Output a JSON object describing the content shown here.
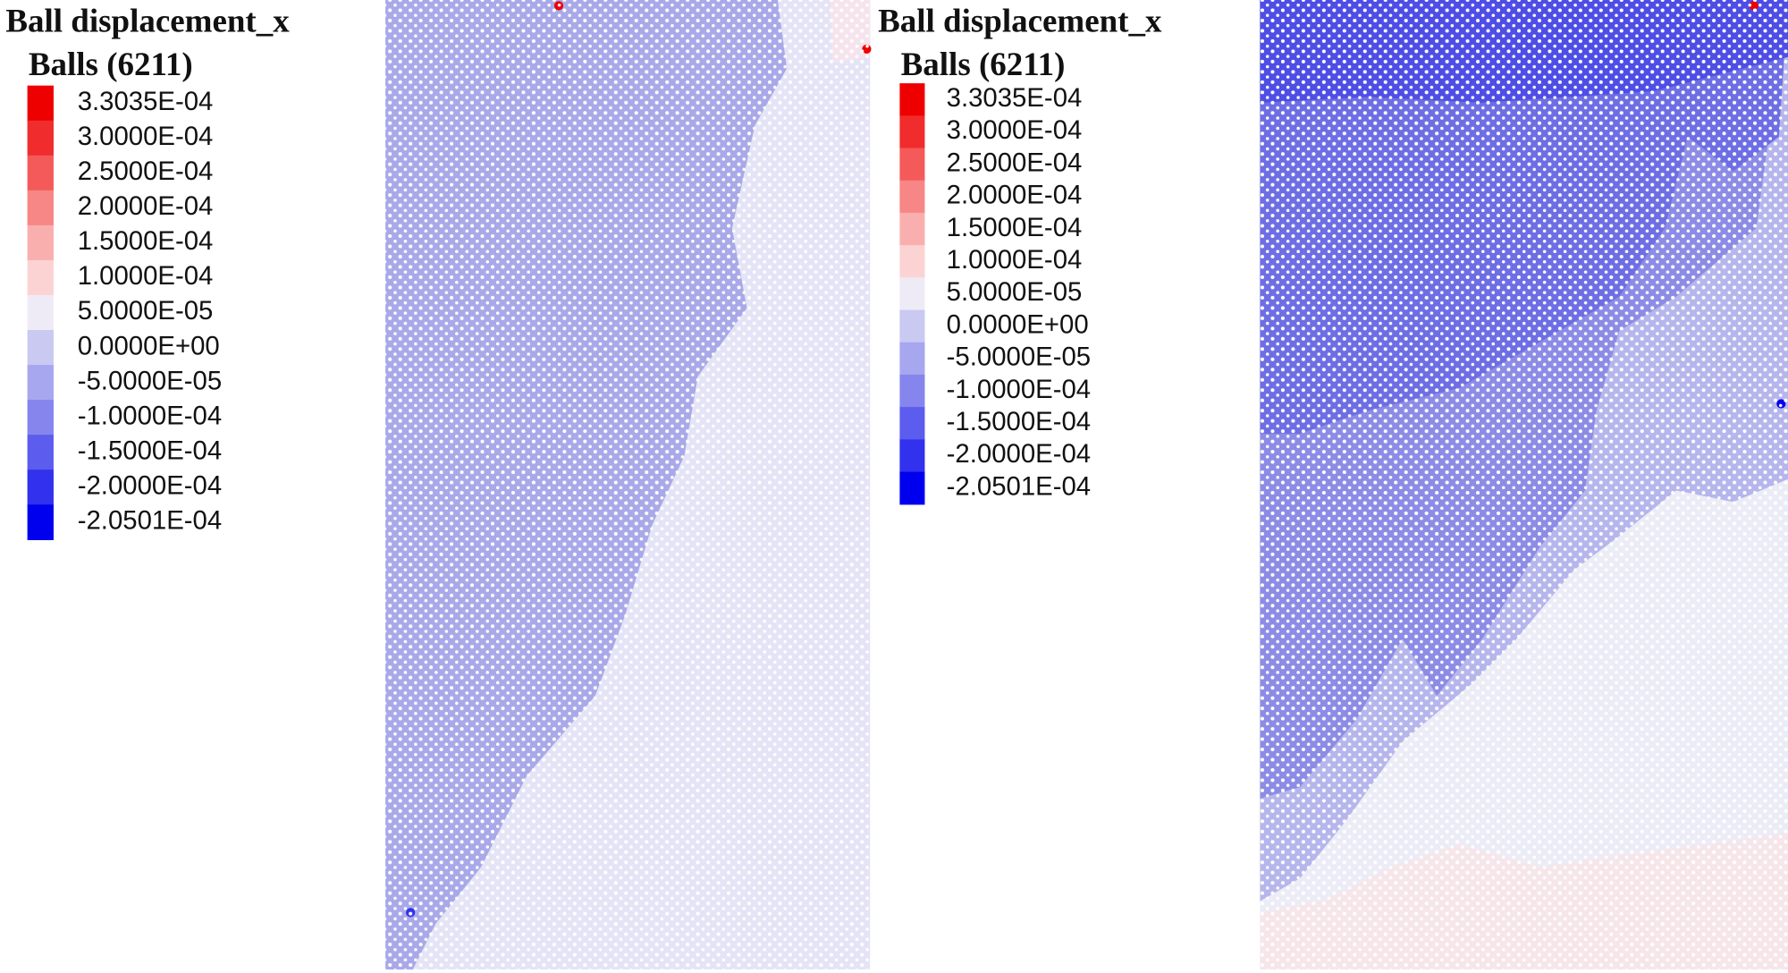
{
  "panels": [
    {
      "title": "Ball displacement_x",
      "subtitle": "Balls (6211)",
      "levels": [
        {
          "label": "3.3035E-04",
          "color": "#ee0000"
        },
        {
          "label": "3.0000E-04",
          "color": "#f02c2c"
        },
        {
          "label": "2.5000E-04",
          "color": "#f45a5a"
        },
        {
          "label": "2.0000E-04",
          "color": "#f78686"
        },
        {
          "label": "1.5000E-04",
          "color": "#faafaf"
        },
        {
          "label": "1.0000E-04",
          "color": "#fcd3d3"
        },
        {
          "label": "5.0000E-05",
          "color": "#efebf6"
        },
        {
          "label": "0.0000E+00",
          "color": "#c9c9f1"
        },
        {
          "label": "-5.0000E-05",
          "color": "#a7a7ef"
        },
        {
          "label": "-1.0000E-04",
          "color": "#8585ed"
        },
        {
          "label": "-1.5000E-04",
          "color": "#5c5cee"
        },
        {
          "label": "-2.0000E-04",
          "color": "#3131ee"
        },
        {
          "label": "-2.0501E-04",
          "color": "#0000ee"
        }
      ]
    },
    {
      "title": "Ball displacement_x",
      "subtitle": "Balls (6211)",
      "levels": [
        {
          "label": "3.3035E-04",
          "color": "#ee0000"
        },
        {
          "label": "3.0000E-04",
          "color": "#f02c2c"
        },
        {
          "label": "2.5000E-04",
          "color": "#f45a5a"
        },
        {
          "label": "2.0000E-04",
          "color": "#f78686"
        },
        {
          "label": "1.5000E-04",
          "color": "#faafaf"
        },
        {
          "label": "1.0000E-04",
          "color": "#fcd3d3"
        },
        {
          "label": "5.0000E-05",
          "color": "#efebf6"
        },
        {
          "label": "0.0000E+00",
          "color": "#c9c9f1"
        },
        {
          "label": "-5.0000E-05",
          "color": "#a7a7ef"
        },
        {
          "label": "-1.0000E-04",
          "color": "#8585ed"
        },
        {
          "label": "-1.5000E-04",
          "color": "#5c5cee"
        },
        {
          "label": "-2.0000E-04",
          "color": "#3131ee"
        },
        {
          "label": "-2.0501E-04",
          "color": "#0000ee"
        }
      ]
    }
  ]
}
